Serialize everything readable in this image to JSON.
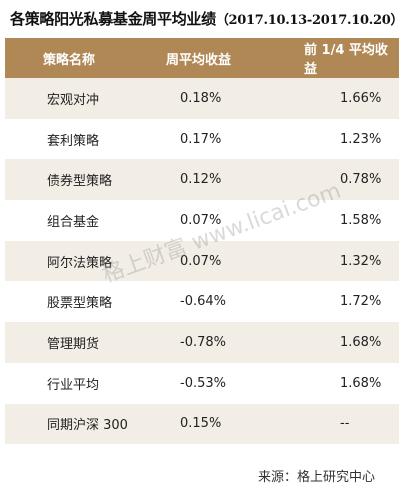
{
  "title": "各策略阳光私募基金周平均业绩",
  "date_range": "（2017.10.13-2017.10.20）",
  "headers": [
    "策略名称",
    "周平均收益",
    "前 1/4 平均收益"
  ],
  "rows": [
    {
      "name": "宏观对冲",
      "weekly": "0.18%",
      "top_quarter": "1.66%"
    },
    {
      "name": "套利策略",
      "weekly": "0.17%",
      "top_quarter": "1.23%"
    },
    {
      "name": "债券型策略",
      "weekly": "0.12%",
      "top_quarter": "0.78%"
    },
    {
      "name": "组合基金",
      "weekly": "0.07%",
      "top_quarter": "1.58%"
    },
    {
      "name": "阿尔法策略",
      "weekly": "0.07%",
      "top_quarter": "1.32%"
    },
    {
      "name": "股票型策略",
      "weekly": "-0.64%",
      "top_quarter": "1.72%"
    },
    {
      "name": "管理期货",
      "weekly": "-0.78%",
      "top_quarter": "1.68%"
    },
    {
      "name": "行业平均",
      "weekly": "-0.53%",
      "top_quarter": "1.68%"
    },
    {
      "name": "同期沪深 300",
      "weekly": "0.15%",
      "top_quarter": "--"
    }
  ],
  "source": "来源：格上研究中心",
  "watermark": "格上财富 www.licai.com",
  "colors": {
    "header_bg": "#b08855",
    "odd_row_bg": "#f2ede5"
  }
}
